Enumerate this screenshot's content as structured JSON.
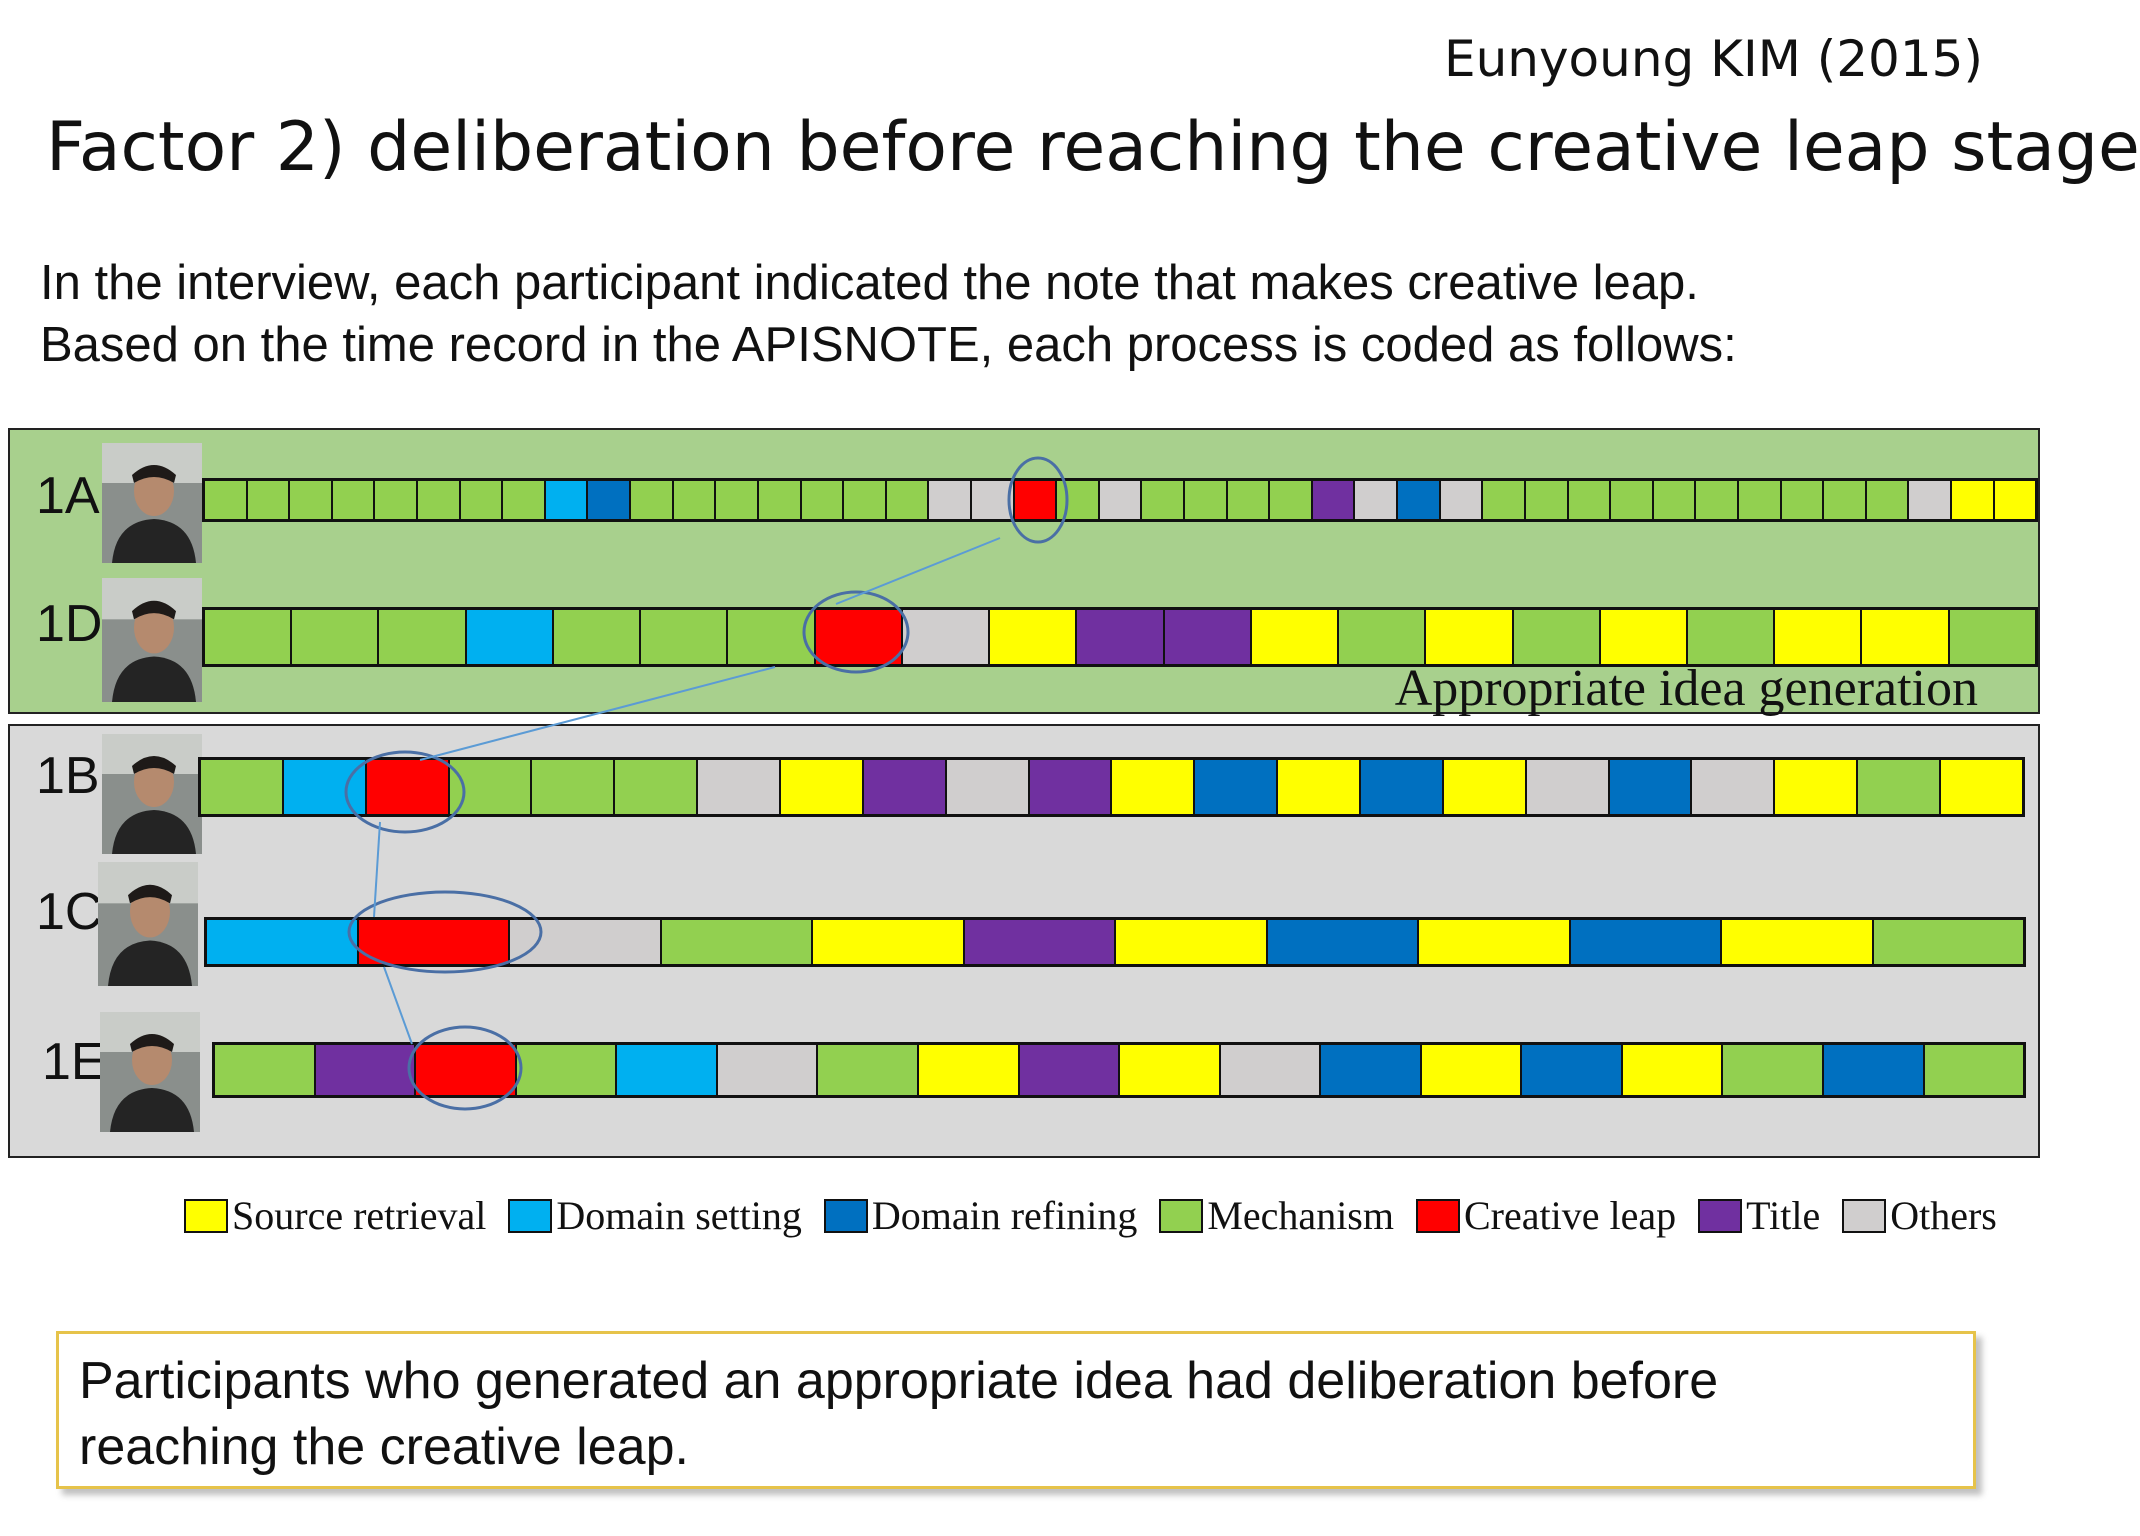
{
  "header": {
    "author": "Eunyoung KIM (2015)",
    "title": "Factor 2) deliberation before reaching the creative leap stage"
  },
  "intro": {
    "line1": "In the interview, each participant indicated the note that makes creative leap.",
    "line2": "Based on the time record in the APISNOTE, each process is coded as follows:"
  },
  "colors": {
    "panel_green": "#a8d08d",
    "panel_gray": "#d9d9d9",
    "highlight_ellipse": "#4a6fa5",
    "connector": "#5b9bd5",
    "conclusion_border": "#e6c34a"
  },
  "categories": {
    "S": {
      "label": "Source retrieval",
      "color": "#ffff00"
    },
    "D": {
      "label": "Domain setting",
      "color": "#00b0f0"
    },
    "R": {
      "label": "Domain refining",
      "color": "#0070c0"
    },
    "M": {
      "label": "Mechanism",
      "color": "#92d050"
    },
    "C": {
      "label": "Creative leap",
      "color": "#ff0000"
    },
    "T": {
      "label": "Title",
      "color": "#7030a0"
    },
    "O": {
      "label": "Others",
      "color": "#d0cece"
    }
  },
  "legend_order": [
    "S",
    "D",
    "R",
    "M",
    "C",
    "T",
    "O"
  ],
  "panels": {
    "top_caption": "Appropriate idea generation"
  },
  "participants": [
    {
      "id": "1A",
      "sequence": [
        "M",
        "M",
        "M",
        "M",
        "M",
        "M",
        "M",
        "M",
        "D",
        "R",
        "M",
        "M",
        "M",
        "M",
        "M",
        "M",
        "M",
        "O",
        "O",
        "C",
        "M",
        "O",
        "M",
        "M",
        "M",
        "M",
        "T",
        "O",
        "R",
        "O",
        "M",
        "M",
        "M",
        "M",
        "M",
        "M",
        "M",
        "M",
        "M",
        "M",
        "O",
        "S",
        "S"
      ]
    },
    {
      "id": "1D",
      "sequence": [
        "M",
        "M",
        "M",
        "D",
        "M",
        "M",
        "M",
        "C",
        "O",
        "S",
        "T",
        "T",
        "S",
        "M",
        "S",
        "M",
        "S",
        "M",
        "S",
        "S",
        "M"
      ]
    },
    {
      "id": "1B",
      "sequence": [
        "M",
        "D",
        "C",
        "M",
        "M",
        "M",
        "O",
        "S",
        "T",
        "O",
        "T",
        "S",
        "R",
        "S",
        "R",
        "S",
        "O",
        "R",
        "O",
        "S",
        "M",
        "S"
      ]
    },
    {
      "id": "1C",
      "sequence": [
        "D",
        "C",
        "O",
        "M",
        "S",
        "T",
        "S",
        "R",
        "S",
        "R",
        "S",
        "M"
      ]
    },
    {
      "id": "1E",
      "sequence": [
        "M",
        "T",
        "C",
        "M",
        "D",
        "O",
        "M",
        "S",
        "T",
        "S",
        "O",
        "R",
        "S",
        "R",
        "S",
        "M",
        "R",
        "M"
      ]
    }
  ],
  "conclusion": {
    "line1": "Participants who generated an appropriate idea had deliberation before",
    "line2": "reaching the creative leap."
  }
}
